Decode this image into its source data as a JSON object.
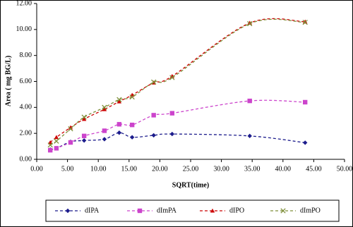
{
  "chart_data": {
    "type": "line",
    "x_label": "SQRT(time)",
    "y_label": "Area ( mg BG/L)",
    "x": [
      2.2,
      3.2,
      5.5,
      7.7,
      11.0,
      13.4,
      15.5,
      19.0,
      22.0,
      34.6,
      43.6
    ],
    "series": [
      {
        "name": "dIPA",
        "color": "#1c1c8c",
        "marker": "diamond",
        "values": [
          0.75,
          0.85,
          1.35,
          1.45,
          1.55,
          2.05,
          1.7,
          1.85,
          1.95,
          1.8,
          1.28
        ]
      },
      {
        "name": "dImPA",
        "color": "#cc44cc",
        "marker": "square",
        "values": [
          0.7,
          0.85,
          1.3,
          1.8,
          2.2,
          2.7,
          2.65,
          3.4,
          3.55,
          4.5,
          4.4
        ]
      },
      {
        "name": "dIPO",
        "color": "#cc0000",
        "marker": "triangle",
        "values": [
          1.3,
          1.7,
          2.45,
          3.1,
          3.85,
          4.45,
          4.95,
          5.9,
          6.4,
          10.5,
          10.6
        ]
      },
      {
        "name": "dImPO",
        "color": "#7f8f3a",
        "marker": "x",
        "values": [
          1.1,
          1.4,
          2.35,
          3.25,
          4.0,
          4.6,
          4.8,
          5.95,
          6.3,
          10.45,
          10.55
        ]
      }
    ],
    "xlim": [
      0,
      50
    ],
    "xticks": [
      {
        "value": 0,
        "label": "0.00"
      },
      {
        "value": 5,
        "label": "5.00"
      },
      {
        "value": 10,
        "label": "10.00"
      },
      {
        "value": 15,
        "label": "15.00"
      },
      {
        "value": 20,
        "label": "20.00"
      },
      {
        "value": 25,
        "label": "25.00"
      },
      {
        "value": 30,
        "label": "30.00"
      },
      {
        "value": 35,
        "label": "35.00"
      },
      {
        "value": 40,
        "label": "40.00"
      },
      {
        "value": 45,
        "label": "45.00"
      },
      {
        "value": 50,
        "label": "50.00"
      }
    ],
    "ylim": [
      0,
      12
    ],
    "yticks": [
      {
        "value": 0,
        "label": "0.00"
      },
      {
        "value": 2,
        "label": "2.00"
      },
      {
        "value": 4,
        "label": "4.00"
      },
      {
        "value": 6,
        "label": "6.00"
      },
      {
        "value": 8,
        "label": "8.00"
      },
      {
        "value": 10,
        "label": "10.00"
      },
      {
        "value": 12,
        "label": "12.00"
      }
    ],
    "grid": false,
    "smooth": true,
    "dashed": true,
    "legend": "bottom"
  }
}
